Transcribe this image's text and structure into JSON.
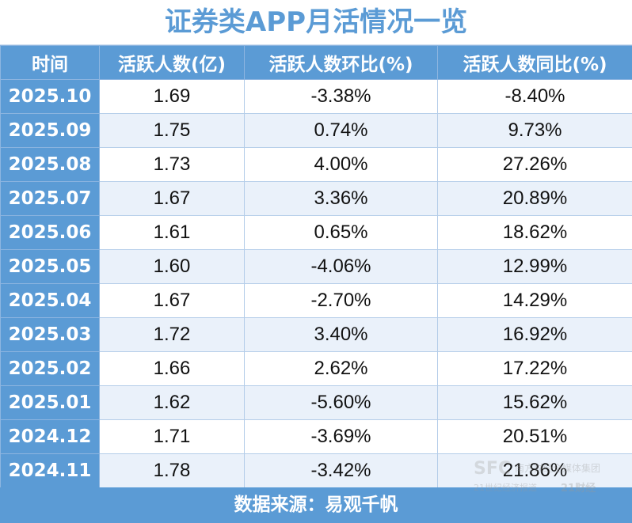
{
  "title": "证券类APP月活情况一览",
  "columns": [
    "时间",
    "活跃人数(亿)",
    "活跃人数环比(%)",
    "活跃人数同比(%)"
  ],
  "rows": [
    [
      "2025.10",
      "1.69",
      "-3.38%",
      "-8.40%"
    ],
    [
      "2025.09",
      "1.75",
      "0.74%",
      "9.73%"
    ],
    [
      "2025.08",
      "1.73",
      "4.00%",
      "27.26%"
    ],
    [
      "2025.07",
      "1.67",
      "3.36%",
      "20.89%"
    ],
    [
      "2025.06",
      "1.61",
      "0.65%",
      "18.62%"
    ],
    [
      "2025.05",
      "1.60",
      "-4.06%",
      "12.99%"
    ],
    [
      "2025.04",
      "1.67",
      "-2.70%",
      "14.29%"
    ],
    [
      "2025.03",
      "1.72",
      "3.40%",
      "16.92%"
    ],
    [
      "2025.02",
      "1.66",
      "2.62%",
      "17.22%"
    ],
    [
      "2025.01",
      "1.62",
      "-5.60%",
      "15.62%"
    ],
    [
      "2024.12",
      "1.71",
      "-3.69%",
      "20.51%"
    ],
    [
      "2024.11",
      "1.78",
      "-3.42%",
      "21.86%"
    ]
  ],
  "footer": "数据来源：易观千帆",
  "watermark": {
    "sfc": "SFC",
    "group": "南方财经全媒体集团",
    "paper": "21世纪经济报道 21ST CENTURY BUSINESS HERALD",
    "brand": "21财经"
  },
  "colors": {
    "accent": "#5b9bd5",
    "row_alt": "#eaf1fa"
  }
}
